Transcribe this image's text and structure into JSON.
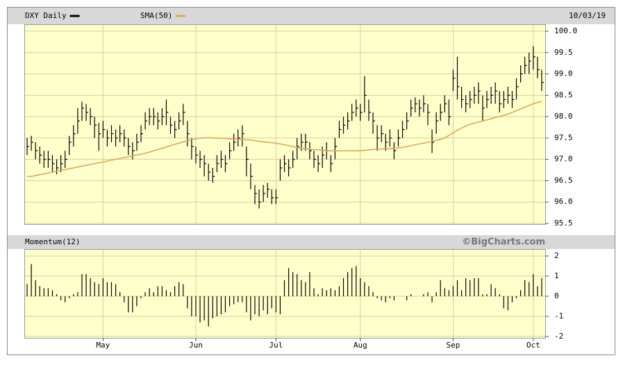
{
  "chart_data": [
    {
      "type": "ohlc",
      "title": "DXY Daily",
      "date": "10/03/19",
      "ylim": [
        95.5,
        100
      ],
      "yticks": [
        {
          "value": 100,
          "label": "100.0"
        },
        99.5,
        {
          "value": 99,
          "label": "99.0"
        },
        98.5,
        {
          "value": 98,
          "label": "98.0"
        },
        97.5,
        {
          "value": 97,
          "label": "97.0"
        },
        96.5,
        {
          "value": 96,
          "label": "96.0"
        },
        95.5
      ],
      "grid": true,
      "series": [
        {
          "name": "DXY Daily",
          "color": "#000000",
          "high": [
            97.5,
            97.55,
            97.4,
            97.3,
            97.2,
            97.2,
            97.1,
            97.0,
            97.1,
            97.2,
            97.55,
            97.8,
            98.2,
            98.35,
            98.3,
            98.2,
            98.0,
            97.85,
            97.9,
            97.7,
            97.8,
            97.7,
            97.8,
            97.7,
            97.5,
            97.4,
            97.6,
            97.8,
            98.1,
            98.2,
            98.2,
            98.1,
            98.2,
            98.4,
            98.0,
            97.9,
            98.1,
            98.3,
            97.9,
            97.5,
            97.3,
            97.2,
            97.1,
            96.9,
            96.8,
            97.1,
            97.2,
            97.1,
            97.4,
            97.6,
            97.7,
            97.8,
            97.3,
            96.9,
            96.4,
            96.3,
            96.4,
            96.45,
            96.3,
            96.3,
            97.0,
            97.1,
            97.0,
            97.2,
            97.5,
            97.6,
            97.6,
            97.4,
            97.2,
            97.1,
            97.3,
            97.4,
            97.1,
            97.5,
            97.9,
            98.0,
            98.1,
            98.3,
            98.4,
            98.3,
            98.95,
            98.4,
            98.1,
            97.8,
            97.8,
            97.6,
            97.7,
            97.4,
            97.7,
            97.9,
            98.1,
            98.4,
            98.45,
            98.4,
            98.5,
            98.3,
            97.7,
            98.1,
            98.3,
            98.5,
            98.4,
            99.1,
            99.4,
            98.7,
            98.5,
            98.6,
            98.7,
            98.8,
            98.5,
            98.6,
            98.7,
            98.8,
            98.6,
            98.6,
            98.7,
            98.6,
            98.9,
            99.2,
            99.4,
            99.5,
            99.65,
            99.4,
            99.1
          ],
          "low": [
            97.1,
            97.2,
            97.0,
            96.9,
            96.8,
            96.8,
            96.7,
            96.65,
            96.7,
            96.8,
            97.1,
            97.3,
            97.6,
            97.9,
            97.9,
            97.8,
            97.5,
            97.2,
            97.5,
            97.3,
            97.4,
            97.3,
            97.4,
            97.3,
            97.1,
            97.0,
            97.2,
            97.4,
            97.7,
            97.8,
            97.8,
            97.7,
            97.8,
            97.8,
            97.6,
            97.5,
            97.7,
            97.8,
            97.3,
            97.0,
            96.9,
            96.8,
            96.6,
            96.5,
            96.45,
            96.7,
            96.8,
            96.7,
            97.0,
            97.2,
            97.3,
            97.3,
            96.6,
            96.3,
            95.95,
            95.85,
            96.0,
            96.1,
            95.95,
            95.95,
            96.5,
            96.7,
            96.6,
            96.8,
            97.0,
            97.2,
            97.2,
            97.0,
            96.8,
            96.7,
            96.8,
            97.0,
            96.7,
            97.0,
            97.5,
            97.6,
            97.7,
            97.9,
            98.0,
            97.9,
            98.1,
            97.9,
            97.6,
            97.2,
            97.4,
            97.2,
            97.3,
            97.0,
            97.3,
            97.5,
            97.7,
            98.0,
            98.1,
            98.0,
            98.1,
            97.8,
            97.15,
            97.6,
            97.9,
            98.1,
            97.8,
            98.6,
            98.4,
            98.2,
            98.1,
            98.2,
            98.3,
            98.3,
            97.9,
            98.2,
            98.3,
            98.3,
            98.1,
            98.2,
            98.3,
            98.2,
            98.4,
            98.8,
            99.0,
            99.0,
            99.1,
            98.9,
            98.6
          ],
          "close": [
            97.3,
            97.4,
            97.2,
            97.1,
            97.0,
            97.0,
            96.9,
            96.8,
            96.9,
            97.0,
            97.4,
            97.6,
            97.9,
            98.2,
            98.1,
            98.0,
            97.8,
            97.6,
            97.7,
            97.5,
            97.6,
            97.5,
            97.6,
            97.5,
            97.3,
            97.2,
            97.4,
            97.6,
            97.9,
            98.0,
            98.0,
            97.9,
            98.0,
            98.1,
            97.8,
            97.7,
            97.9,
            98.1,
            97.6,
            97.3,
            97.1,
            97.0,
            96.9,
            96.7,
            96.6,
            96.9,
            97.0,
            96.9,
            97.2,
            97.4,
            97.5,
            97.6,
            97.0,
            96.6,
            96.2,
            96.0,
            96.2,
            96.3,
            96.1,
            96.1,
            96.8,
            96.9,
            96.8,
            97.0,
            97.3,
            97.4,
            97.4,
            97.2,
            97.0,
            96.9,
            97.1,
            97.2,
            96.9,
            97.3,
            97.7,
            97.8,
            97.9,
            98.1,
            98.2,
            98.1,
            98.5,
            98.1,
            97.9,
            97.5,
            97.6,
            97.4,
            97.5,
            97.2,
            97.5,
            97.7,
            97.9,
            98.2,
            98.3,
            98.2,
            98.3,
            98.1,
            97.4,
            97.9,
            98.1,
            98.3,
            98.0,
            98.9,
            98.7,
            98.4,
            98.3,
            98.4,
            98.5,
            98.6,
            98.2,
            98.4,
            98.5,
            98.6,
            98.3,
            98.4,
            98.5,
            98.4,
            98.7,
            99.0,
            99.2,
            99.3,
            99.4,
            99.1,
            98.8
          ]
        },
        {
          "name": "SMA(50)",
          "color": "#d9a95b",
          "values": [
            96.6,
            96.6,
            96.62,
            96.64,
            96.66,
            96.68,
            96.7,
            96.72,
            96.74,
            96.76,
            96.78,
            96.8,
            96.82,
            96.84,
            96.86,
            96.88,
            96.9,
            96.92,
            96.94,
            96.96,
            96.98,
            97.0,
            97.02,
            97.04,
            97.06,
            97.08,
            97.1,
            97.12,
            97.14,
            97.17,
            97.2,
            97.23,
            97.26,
            97.29,
            97.32,
            97.35,
            97.38,
            97.41,
            97.44,
            97.46,
            97.48,
            97.5,
            97.5,
            97.51,
            97.5,
            97.5,
            97.49,
            97.49,
            97.48,
            97.48,
            97.47,
            97.47,
            97.46,
            97.45,
            97.44,
            97.42,
            97.41,
            97.4,
            97.39,
            97.38,
            97.36,
            97.34,
            97.32,
            97.3,
            97.28,
            97.26,
            97.25,
            97.24,
            97.23,
            97.22,
            97.21,
            97.2,
            97.2,
            97.2,
            97.2,
            97.2,
            97.2,
            97.2,
            97.2,
            97.2,
            97.21,
            97.22,
            97.23,
            97.24,
            97.24,
            97.25,
            97.25,
            97.26,
            97.27,
            97.28,
            97.3,
            97.32,
            97.34,
            97.36,
            97.38,
            97.4,
            97.42,
            97.44,
            97.47,
            97.5,
            97.56,
            97.62,
            97.68,
            97.73,
            97.78,
            97.82,
            97.85,
            97.87,
            97.9,
            97.92,
            97.95,
            97.98,
            98.0,
            98.03,
            98.06,
            98.1,
            98.14,
            98.18,
            98.22,
            98.26,
            98.3,
            98.33,
            98.36
          ]
        }
      ]
    },
    {
      "type": "bar",
      "title": "Momentum(12)",
      "watermark": "©BigCharts.com",
      "ylim": [
        -2,
        2
      ],
      "yticks": [
        2,
        1,
        0,
        -1,
        -2
      ],
      "grid": true,
      "xticks": [
        {
          "value": 18,
          "label": "May"
        },
        {
          "value": 40,
          "label": "Jun"
        },
        {
          "value": 59,
          "label": "Jul"
        },
        {
          "value": 79,
          "label": "Aug"
        },
        {
          "value": 101,
          "label": "Sep"
        },
        {
          "value": 120,
          "label": "Oct"
        }
      ],
      "series": [
        {
          "name": "Momentum(12)",
          "color": "#000000",
          "values": [
            0.6,
            1.6,
            0.8,
            0.5,
            0.4,
            0.4,
            0.3,
            0.1,
            -0.2,
            -0.3,
            -0.1,
            0.1,
            0.2,
            1.1,
            1.1,
            0.9,
            0.7,
            0.6,
            0.9,
            0.7,
            0.7,
            0.6,
            0.2,
            -0.3,
            -0.8,
            -0.8,
            -0.5,
            -0.1,
            0.2,
            0.4,
            0.2,
            0.5,
            0.5,
            0.3,
            0.2,
            0.5,
            0.7,
            0.6,
            -0.6,
            -1.0,
            -1.0,
            -1.3,
            -1.2,
            -1.5,
            -1.1,
            -1.0,
            -0.9,
            -0.8,
            -0.5,
            -0.4,
            -0.3,
            -0.3,
            -0.8,
            -1.2,
            -0.9,
            -1.0,
            -0.7,
            -0.9,
            -0.6,
            -0.8,
            -0.9,
            0.8,
            1.4,
            1.2,
            1.1,
            0.8,
            0.7,
            1.2,
            0.4,
            0.1,
            0.4,
            0.3,
            0.4,
            0.3,
            0.5,
            0.9,
            1.2,
            1.4,
            1.5,
            0.9,
            0.7,
            0.5,
            0.2,
            -0.1,
            -0.2,
            -0.3,
            -0.1,
            -0.2,
            0.0,
            0.0,
            -0.2,
            0.1,
            0.0,
            0.0,
            0.1,
            0.2,
            -0.3,
            0.2,
            0.8,
            0.4,
            0.3,
            0.5,
            0.8,
            0.3,
            0.9,
            0.8,
            0.9,
            0.9,
            0.1,
            0.1,
            0.6,
            0.4,
            0.1,
            -0.6,
            -0.7,
            -0.3,
            -0.1,
            0.3,
            0.8,
            0.7,
            1.1,
            0.5,
            0.9
          ]
        }
      ]
    }
  ]
}
